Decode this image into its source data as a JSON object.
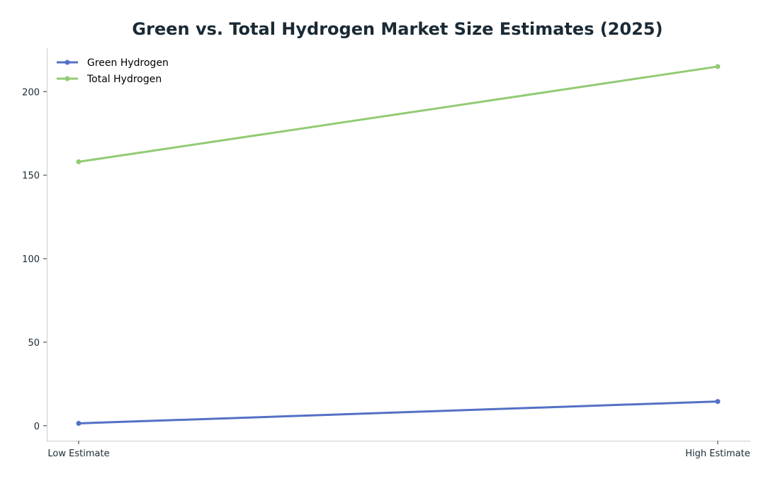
{
  "chart_data": {
    "type": "line",
    "title": "Green vs. Total Hydrogen Market Size Estimates (2025)",
    "xlabel": "",
    "ylabel": "",
    "categories": [
      "Low Estimate",
      "High Estimate"
    ],
    "series": [
      {
        "name": "Green Hydrogen",
        "values": [
          1.4,
          14.5
        ],
        "color": "#5470c6"
      },
      {
        "name": "Total Hydrogen",
        "values": [
          158,
          215
        ],
        "color": "#91cb74"
      }
    ],
    "ylim": [
      -9,
      226
    ],
    "yticks": [
      0,
      50,
      100,
      150,
      200
    ],
    "grid": false,
    "legend_position": "top-left"
  }
}
